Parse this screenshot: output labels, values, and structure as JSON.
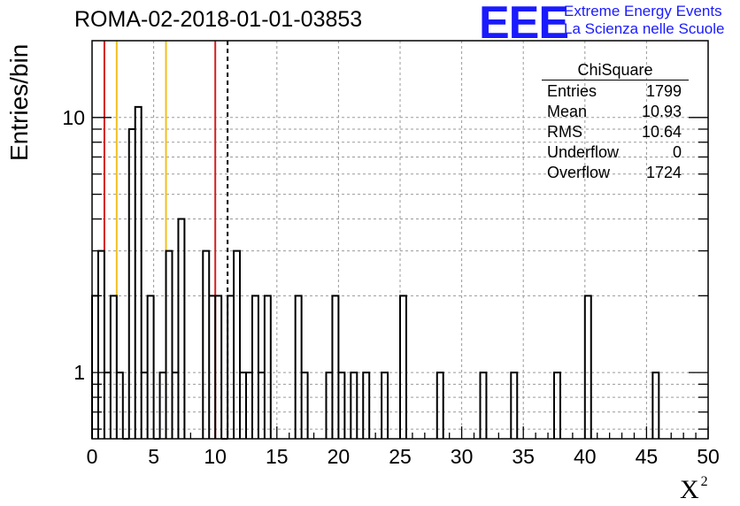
{
  "page": {
    "title": "ROMA-02-2018-01-01-03853",
    "logo_text": "EEE",
    "brand_line1": "Extreme Energy Events",
    "brand_line2": "La Scienza nelle Scuole"
  },
  "stats_box": {
    "title": "ChiSquare",
    "rows": [
      {
        "label": "Entries",
        "value": "1799"
      },
      {
        "label": "Mean",
        "value": "10.93"
      },
      {
        "label": "RMS",
        "value": "10.64"
      },
      {
        "label": "Underflow",
        "value": "0"
      },
      {
        "label": "Overflow",
        "value": "1724"
      }
    ]
  },
  "chart_data": {
    "type": "histogram",
    "title": "ROMA-02-2018-01-01-03853",
    "xlabel": "X",
    "xlabel_superscript": "2",
    "ylabel": "Entries/bin",
    "xlim": [
      0,
      50
    ],
    "ylim": [
      0.55,
      20
    ],
    "yscale": "log",
    "bin_width": 0.5,
    "grid": true,
    "x_ticks": [
      0,
      5,
      10,
      15,
      20,
      25,
      30,
      35,
      40,
      45,
      50
    ],
    "x_tick_labels": [
      "0",
      "5",
      "10",
      "15",
      "20",
      "25",
      "30",
      "35",
      "40",
      "45",
      "50"
    ],
    "y_ticks": [
      1,
      10
    ],
    "y_tick_labels": [
      "1",
      "10"
    ],
    "bins": [
      {
        "x": 0.0,
        "count": 2
      },
      {
        "x": 0.5,
        "count": 3
      },
      {
        "x": 1.0,
        "count": 1
      },
      {
        "x": 1.5,
        "count": 2
      },
      {
        "x": 2.0,
        "count": 1
      },
      {
        "x": 2.5,
        "count": 0
      },
      {
        "x": 3.0,
        "count": 9
      },
      {
        "x": 3.5,
        "count": 11
      },
      {
        "x": 4.0,
        "count": 1
      },
      {
        "x": 4.5,
        "count": 2
      },
      {
        "x": 5.0,
        "count": 0
      },
      {
        "x": 5.5,
        "count": 1
      },
      {
        "x": 6.0,
        "count": 3
      },
      {
        "x": 6.5,
        "count": 1
      },
      {
        "x": 7.0,
        "count": 4
      },
      {
        "x": 9.0,
        "count": 3
      },
      {
        "x": 9.5,
        "count": 2
      },
      {
        "x": 10.0,
        "count": 2
      },
      {
        "x": 10.5,
        "count": 0
      },
      {
        "x": 11.0,
        "count": 2
      },
      {
        "x": 11.5,
        "count": 3
      },
      {
        "x": 12.0,
        "count": 1
      },
      {
        "x": 12.5,
        "count": 1
      },
      {
        "x": 13.0,
        "count": 2
      },
      {
        "x": 13.5,
        "count": 1
      },
      {
        "x": 14.0,
        "count": 2
      },
      {
        "x": 16.5,
        "count": 2
      },
      {
        "x": 17.0,
        "count": 1
      },
      {
        "x": 19.0,
        "count": 1
      },
      {
        "x": 19.5,
        "count": 2
      },
      {
        "x": 20.0,
        "count": 1
      },
      {
        "x": 21.0,
        "count": 1
      },
      {
        "x": 22.0,
        "count": 1
      },
      {
        "x": 23.5,
        "count": 1
      },
      {
        "x": 25.0,
        "count": 2
      },
      {
        "x": 28.0,
        "count": 1
      },
      {
        "x": 31.5,
        "count": 1
      },
      {
        "x": 34.0,
        "count": 1
      },
      {
        "x": 37.5,
        "count": 1
      },
      {
        "x": 40.0,
        "count": 2
      },
      {
        "x": 45.5,
        "count": 1
      }
    ],
    "vertical_lines": [
      {
        "x": 1.0,
        "color": "#d42020",
        "style": "solid"
      },
      {
        "x": 2.0,
        "color": "#f0c020",
        "style": "solid"
      },
      {
        "x": 6.0,
        "color": "#f0c020",
        "style": "solid"
      },
      {
        "x": 10.0,
        "color": "#d42020",
        "style": "solid"
      },
      {
        "x": 11.0,
        "color": "#000000",
        "style": "dashed"
      }
    ]
  }
}
